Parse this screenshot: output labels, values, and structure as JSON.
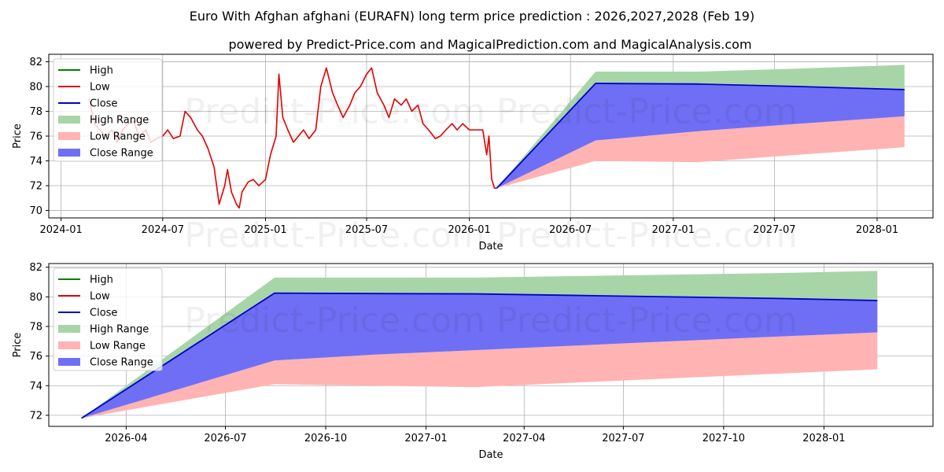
{
  "title": "Euro With Afghan afghani (EURAFN) long term price prediction : 2026,2027,2028 (Feb 19)",
  "subtitle": "powered by Predict-Price.com and MagicalPrediction.com and MagicalAnalysis.com",
  "watermark": "Predict-Price.com",
  "colors": {
    "high": "#008000",
    "low": "#e00000",
    "close": "#0000cc",
    "high_range": "#a8d5a8",
    "low_range": "#ffb3b3",
    "close_range": "#6f6ff5"
  },
  "chart_data": [
    {
      "type": "line",
      "name": "full-history-and-forecast",
      "xlabel": "Date",
      "ylabel": "Price",
      "xlim": [
        "2023-12-10",
        "2028-04-10"
      ],
      "ylim": [
        69.4,
        82.6
      ],
      "grid": true,
      "legend_position": "top-left",
      "xticks": [
        "2024-01",
        "2024-07",
        "2025-01",
        "2025-07",
        "2026-01",
        "2026-07",
        "2027-01",
        "2027-07",
        "2028-01"
      ],
      "yticks": [
        70,
        72,
        74,
        76,
        78,
        80,
        82
      ],
      "legend": [
        "High",
        "Low",
        "Close",
        "High Range",
        "Low Range",
        "Close Range"
      ],
      "history": {
        "name": "Low",
        "x": [
          "2024-02-20",
          "2024-03-01",
          "2024-03-10",
          "2024-03-20",
          "2024-04-01",
          "2024-04-10",
          "2024-04-20",
          "2024-05-01",
          "2024-05-10",
          "2024-05-20",
          "2024-06-01",
          "2024-06-10",
          "2024-06-20",
          "2024-07-01",
          "2024-07-10",
          "2024-07-20",
          "2024-08-01",
          "2024-08-10",
          "2024-08-20",
          "2024-09-01",
          "2024-09-10",
          "2024-09-20",
          "2024-10-01",
          "2024-10-10",
          "2024-10-20",
          "2024-10-25",
          "2024-11-01",
          "2024-11-10",
          "2024-11-15",
          "2024-11-20",
          "2024-12-01",
          "2024-12-10",
          "2024-12-20",
          "2025-01-01",
          "2025-01-10",
          "2025-01-20",
          "2025-01-25",
          "2025-02-01",
          "2025-02-10",
          "2025-02-20",
          "2025-03-01",
          "2025-03-10",
          "2025-03-20",
          "2025-04-01",
          "2025-04-10",
          "2025-04-20",
          "2025-05-01",
          "2025-05-10",
          "2025-05-20",
          "2025-06-01",
          "2025-06-10",
          "2025-06-20",
          "2025-07-01",
          "2025-07-10",
          "2025-07-20",
          "2025-08-01",
          "2025-08-10",
          "2025-08-20",
          "2025-09-01",
          "2025-09-10",
          "2025-09-20",
          "2025-10-01",
          "2025-10-10",
          "2025-10-20",
          "2025-11-01",
          "2025-11-10",
          "2025-11-20",
          "2025-12-01",
          "2025-12-10",
          "2025-12-20",
          "2026-01-01",
          "2026-01-10",
          "2026-01-20",
          "2026-01-25",
          "2026-02-01",
          "2026-02-05",
          "2026-02-10",
          "2026-02-15",
          "2026-02-19"
        ],
        "values": [
          79.0,
          77.0,
          76.5,
          76.0,
          76.5,
          75.5,
          76.5,
          77.0,
          77.2,
          76.0,
          76.5,
          75.5,
          75.8,
          76.0,
          76.5,
          75.8,
          76.0,
          78.0,
          77.5,
          76.5,
          76.0,
          75.0,
          73.5,
          70.5,
          72.0,
          73.3,
          71.5,
          70.5,
          70.2,
          71.5,
          72.3,
          72.5,
          72.0,
          72.5,
          74.5,
          76.0,
          81.0,
          77.5,
          76.5,
          75.5,
          76.0,
          76.5,
          75.8,
          76.5,
          80.0,
          81.5,
          79.5,
          78.5,
          77.5,
          78.5,
          79.5,
          80.0,
          81.0,
          81.5,
          79.5,
          78.5,
          77.5,
          79.0,
          78.5,
          79.0,
          78.0,
          78.5,
          77.0,
          76.5,
          75.8,
          76.0,
          76.5,
          77.0,
          76.5,
          77.0,
          76.5,
          76.5,
          76.5,
          76.5,
          74.5,
          76.0,
          72.5,
          71.8,
          71.8
        ]
      },
      "forecast": {
        "x": [
          "2026-02-19",
          "2026-08-15",
          "2027-02-15",
          "2027-08-15",
          "2028-02-19"
        ],
        "close": [
          71.8,
          80.25,
          80.2,
          80.0,
          79.75
        ],
        "high_range_upper": [
          71.8,
          81.2,
          81.2,
          81.45,
          81.75
        ],
        "high_range_lower": [
          71.8,
          79.9,
          79.9,
          79.9,
          79.9
        ],
        "close_range_upper": [
          71.8,
          80.25,
          80.2,
          80.0,
          79.75
        ],
        "close_range_lower": [
          71.8,
          75.65,
          76.4,
          77.0,
          77.6
        ],
        "low_range_upper": [
          71.8,
          75.65,
          76.4,
          77.0,
          77.6
        ],
        "low_range_lower": [
          71.8,
          74.0,
          73.9,
          74.5,
          75.1
        ]
      }
    },
    {
      "type": "area",
      "name": "forecast-zoom",
      "xlabel": "Date",
      "ylabel": "Price",
      "xlim": [
        "2026-01-20",
        "2028-04-10"
      ],
      "ylim": [
        71.25,
        82.25
      ],
      "grid": true,
      "legend_position": "top-left",
      "xticks": [
        "2026-04",
        "2026-07",
        "2026-10",
        "2027-01",
        "2027-04",
        "2027-07",
        "2027-10",
        "2028-01"
      ],
      "yticks": [
        72,
        74,
        76,
        78,
        80,
        82
      ],
      "legend": [
        "High",
        "Low",
        "Close",
        "High Range",
        "Low Range",
        "Close Range"
      ],
      "x": [
        "2026-02-19",
        "2026-08-15",
        "2026-11-15",
        "2027-02-15",
        "2027-05-15",
        "2027-08-15",
        "2027-11-15",
        "2028-02-19"
      ],
      "close": [
        71.8,
        80.25,
        80.22,
        80.2,
        80.1,
        80.0,
        79.9,
        79.75
      ],
      "high_range_upper": [
        71.8,
        81.3,
        81.3,
        81.3,
        81.4,
        81.5,
        81.6,
        81.75
      ],
      "high_range_lower": [
        71.8,
        80.0,
        80.0,
        80.0,
        80.0,
        80.0,
        80.0,
        80.0
      ],
      "close_range_upper": [
        71.8,
        80.25,
        80.22,
        80.2,
        80.1,
        80.0,
        79.9,
        79.75
      ],
      "close_range_lower": [
        71.8,
        75.7,
        76.1,
        76.4,
        76.7,
        77.0,
        77.3,
        77.6
      ],
      "low_range_upper": [
        71.8,
        75.7,
        76.1,
        76.4,
        76.7,
        77.0,
        77.3,
        77.6
      ],
      "low_range_lower": [
        71.8,
        74.1,
        74.0,
        73.9,
        74.2,
        74.5,
        74.8,
        75.1
      ]
    }
  ]
}
